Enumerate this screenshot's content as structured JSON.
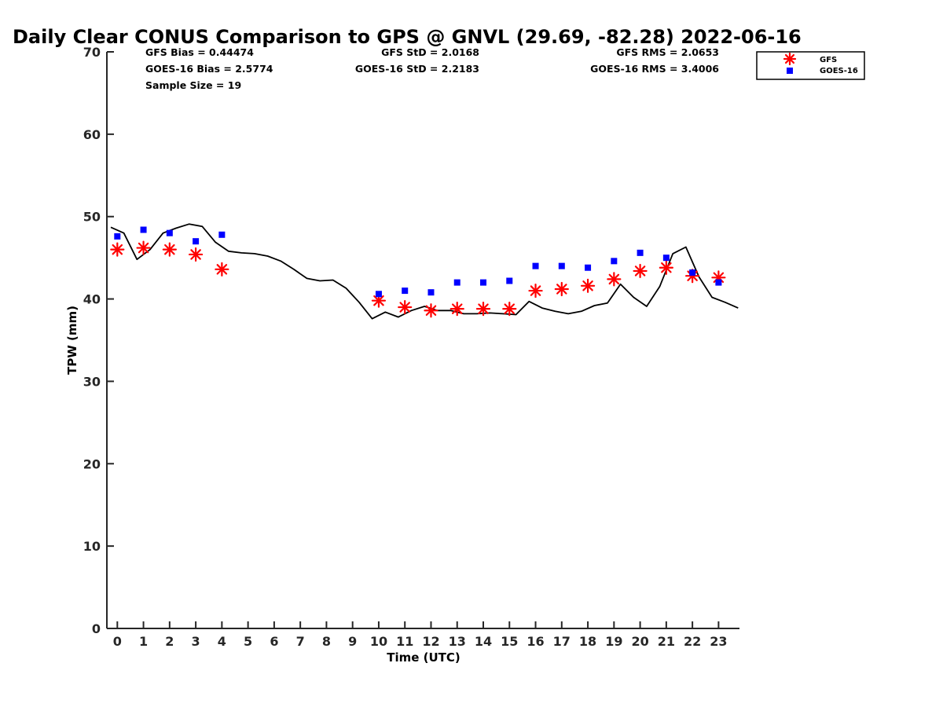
{
  "chart_data": {
    "type": "line",
    "title": "Daily Clear CONUS Comparison to GPS @ GNVL (29.69, -82.28) 2022-06-16",
    "xlabel": "Time (UTC)",
    "ylabel": "TPW (mm)",
    "xlim": [
      -0.4,
      23.8
    ],
    "ylim": [
      0,
      70
    ],
    "xticks": [
      0,
      1,
      2,
      3,
      4,
      5,
      6,
      7,
      8,
      9,
      10,
      11,
      12,
      13,
      14,
      15,
      16,
      17,
      18,
      19,
      20,
      21,
      22,
      23
    ],
    "yticks": [
      0,
      10,
      20,
      30,
      40,
      50,
      60,
      70
    ],
    "grid": false,
    "legend_position": "top-right",
    "stats": {
      "gfs_bias": "GFS Bias = 0.44474",
      "goes_bias": "GOES-16 Bias = 2.5774",
      "sample_size": "Sample Size = 19",
      "gfs_std": "GFS StD = 2.0168",
      "goes_std": "GOES-16 StD = 2.2183",
      "gfs_rms": "GFS RMS = 2.0653",
      "goes_rms": "GOES-16 RMS = 3.4006"
    },
    "series": [
      {
        "marker": "line",
        "color": "#000000",
        "x": [
          -0.25,
          0.25,
          0.75,
          1.25,
          1.75,
          2.25,
          2.75,
          3.25,
          3.75,
          4.25,
          4.75,
          5.25,
          5.75,
          6.25,
          6.75,
          7.25,
          7.75,
          8.25,
          8.75,
          9.25,
          9.75,
          10.25,
          10.75,
          11.25,
          11.75,
          12.25,
          12.75,
          13.25,
          13.75,
          14.25,
          14.75,
          15.25,
          15.75,
          16.25,
          16.75,
          17.25,
          17.75,
          18.25,
          18.75,
          19.25,
          19.75,
          20.25,
          20.75,
          21.25,
          21.75,
          22.25,
          22.75,
          23.25,
          23.75
        ],
        "y": [
          48.7,
          48.0,
          44.8,
          46.0,
          48.0,
          48.6,
          49.1,
          48.8,
          46.9,
          45.8,
          45.6,
          45.5,
          45.2,
          44.6,
          43.6,
          42.5,
          42.2,
          42.3,
          41.3,
          39.6,
          37.6,
          38.4,
          37.8,
          38.6,
          39.1,
          38.6,
          38.6,
          38.2,
          38.2,
          38.3,
          38.2,
          38.1,
          39.7,
          38.9,
          38.5,
          38.2,
          38.5,
          39.2,
          39.5,
          41.8,
          40.2,
          39.1,
          41.5,
          45.5,
          46.3,
          42.7,
          40.2,
          39.6,
          38.9
        ]
      },
      {
        "name": "GFS",
        "marker": "asterisk",
        "color": "#ff0000",
        "x": [
          0,
          1,
          2,
          3,
          4,
          10,
          11,
          12,
          13,
          14,
          15,
          16,
          17,
          18,
          19,
          20,
          21,
          22,
          23
        ],
        "y": [
          46.0,
          46.2,
          46.0,
          45.4,
          43.6,
          39.8,
          39.0,
          38.6,
          38.8,
          38.8,
          38.8,
          41.0,
          41.2,
          41.6,
          42.4,
          43.4,
          43.8,
          42.8,
          42.6
        ]
      },
      {
        "name": "GOES-16",
        "marker": "square",
        "color": "#0000ff",
        "x": [
          0,
          1,
          2,
          3,
          4,
          10,
          11,
          12,
          13,
          14,
          15,
          16,
          17,
          18,
          19,
          20,
          21,
          22,
          23
        ],
        "y": [
          47.6,
          48.4,
          48.0,
          47.0,
          47.8,
          40.6,
          41.0,
          40.8,
          42.0,
          42.0,
          42.2,
          44.0,
          44.0,
          43.8,
          44.6,
          45.6,
          45.0,
          43.2,
          42.0
        ]
      }
    ]
  }
}
